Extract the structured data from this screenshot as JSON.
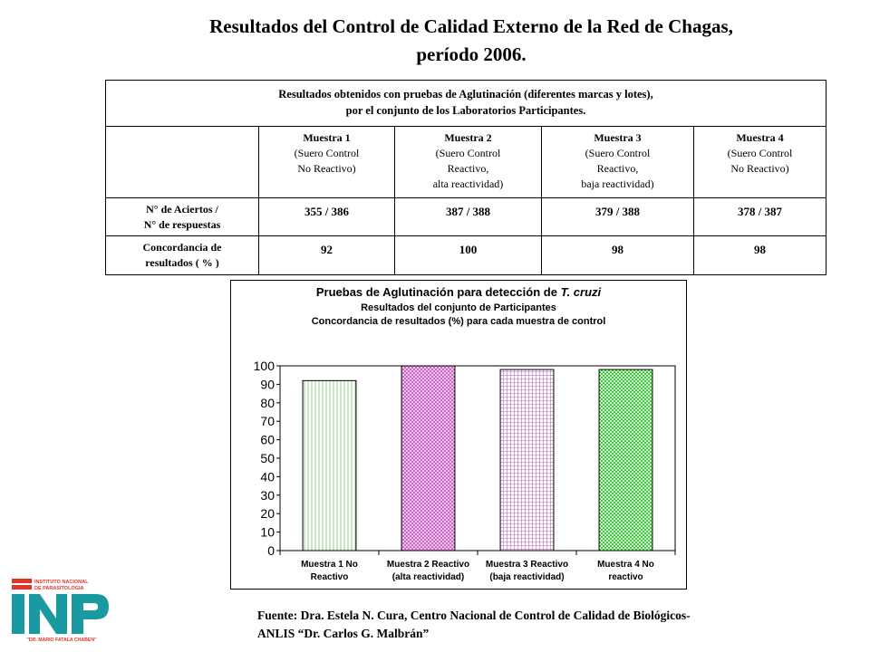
{
  "title": {
    "line1": "Resultados del Control de Calidad Externo de la Red de Chagas,",
    "line2": "período 2006."
  },
  "table": {
    "header_line1": "Resultados obtenidos con pruebas de Aglutinación (diferentes marcas y lotes),",
    "header_line2": "por el conjunto de los Laboratorios Participantes.",
    "columns": [
      {
        "name": "Muestra 1",
        "l2": "(Suero Control",
        "l3": "No Reactivo)",
        "l4": ""
      },
      {
        "name": "Muestra 2",
        "l2": "(Suero Control",
        "l3": "Reactivo,",
        "l4": "alta reactividad)"
      },
      {
        "name": "Muestra 3",
        "l2": "(Suero Control",
        "l3": "Reactivo,",
        "l4": "baja reactividad)"
      },
      {
        "name": "Muestra 4",
        "l2": "(Suero Control",
        "l3": "No Reactivo)",
        "l4": ""
      }
    ],
    "rows": [
      {
        "label_line1": "N° de Aciertos /",
        "label_line2": "N° de respuestas",
        "values": [
          "355 / 386",
          "387 / 388",
          "379 / 388",
          "378 / 387"
        ]
      },
      {
        "label_line1": "Concordancia de",
        "label_line2": "resultados ( % )",
        "values": [
          "92",
          "100",
          "98",
          "98"
        ]
      }
    ]
  },
  "chart_data": {
    "type": "bar",
    "title": "Pruebas de Aglutinación para detección de",
    "title_italic": "T. cruzi",
    "subtitle1": "Resultados del conjunto de Participantes",
    "subtitle2": "Concordancia de resultados (%) para cada muestra de control",
    "categories": [
      [
        "Muestra 1 No",
        "Reactivo"
      ],
      [
        "Muestra 2 Reactivo",
        "(alta reactividad)"
      ],
      [
        "Muestra 3  Reactivo",
        "(baja reactividad)"
      ],
      [
        "Muestra 4  No",
        "reactivo"
      ]
    ],
    "values": [
      92,
      100,
      98,
      98
    ],
    "ylim": [
      0,
      100
    ],
    "yticks": [
      0,
      10,
      20,
      30,
      40,
      50,
      60,
      70,
      80,
      90,
      100
    ],
    "grid": false,
    "legend": "none",
    "bar_colors": [
      "#cfe9c8",
      "#e0a0dc",
      "#e6a8e2",
      "#22cc22"
    ]
  },
  "logo": {
    "line1": "INSTITUTO NACIONAL",
    "line2": "DE PARASITOLOGIA",
    "bottom": "\"DR. MARIO FATALA CHABEN\""
  },
  "source": {
    "line1": "Fuente: Dra. Estela N. Cura, Centro Nacional de Control de Calidad de Biológicos-",
    "line2": "ANLIS “Dr. Carlos G. Malbrán”"
  }
}
